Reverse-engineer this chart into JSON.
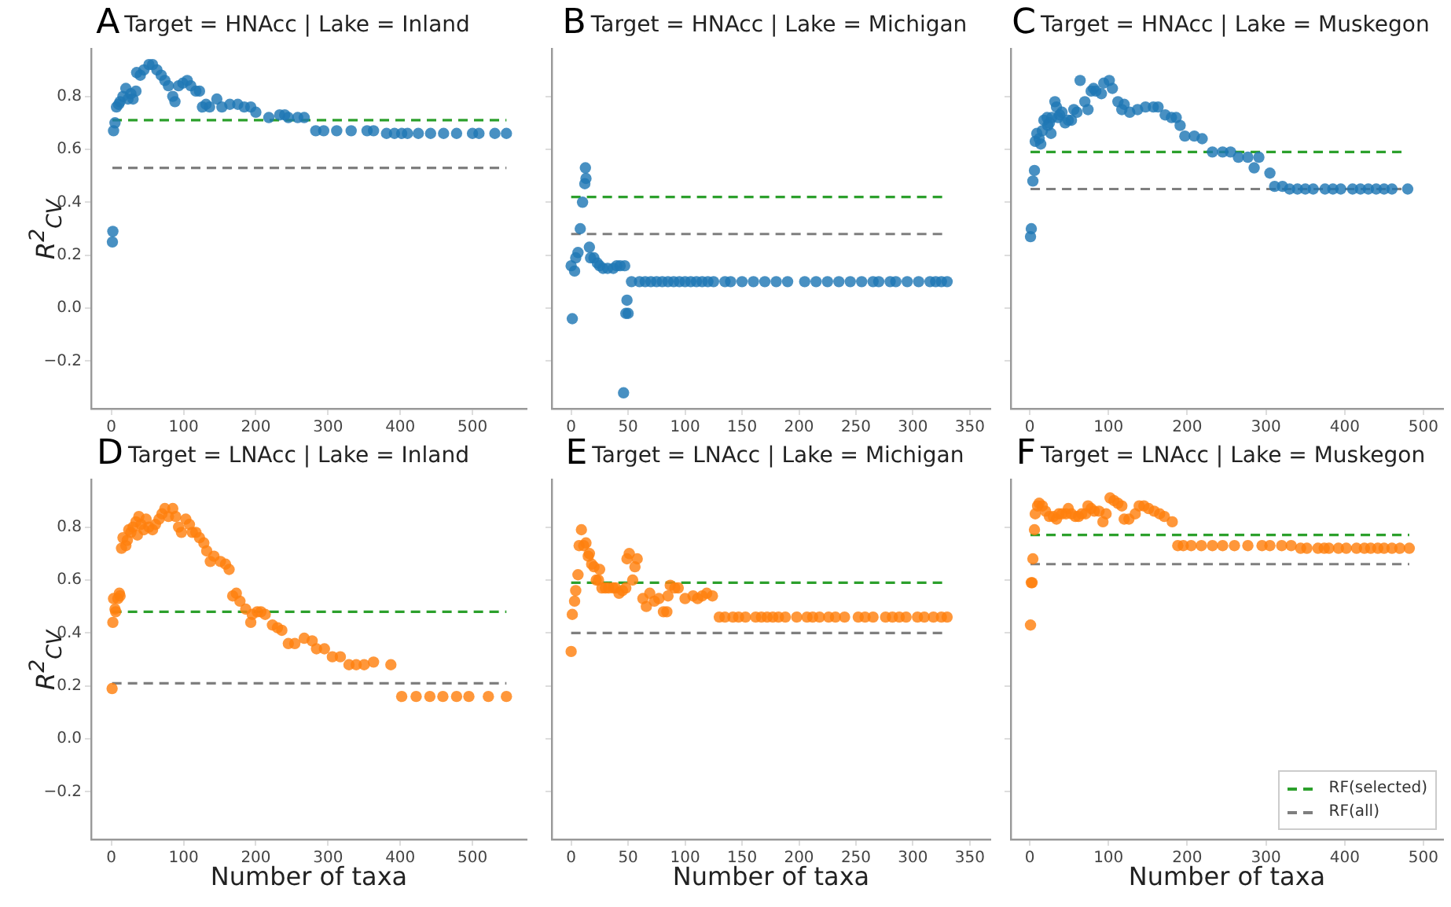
{
  "chart_data": [
    {
      "type": "scatter",
      "title": "Target = HNAcc | Lake = Inland",
      "annotations": [
        "A"
      ],
      "ylabel": "R$^{2}$$_{CV}$",
      "color": "#1f77b4",
      "marker": "circle",
      "grid": false,
      "legend": false,
      "x": [
        1.4,
        2,
        3,
        5,
        7,
        10,
        12,
        16,
        20,
        23,
        27,
        30,
        34,
        35,
        40,
        45,
        52,
        57,
        63,
        69,
        74,
        79,
        85,
        88,
        93,
        99,
        105,
        110,
        117,
        122,
        126,
        131,
        136,
        146,
        153,
        164,
        175,
        184,
        193,
        200,
        218,
        233,
        240,
        245,
        258,
        267,
        283,
        294,
        312,
        332,
        354,
        363,
        381,
        392,
        402,
        410,
        425,
        442,
        460,
        478,
        500,
        509,
        531,
        547
      ],
      "values": [
        0.25,
        0.29,
        0.67,
        0.7,
        0.76,
        0.77,
        0.78,
        0.8,
        0.83,
        0.79,
        0.81,
        0.79,
        0.82,
        0.89,
        0.88,
        0.9,
        0.92,
        0.92,
        0.9,
        0.88,
        0.86,
        0.84,
        0.8,
        0.78,
        0.84,
        0.85,
        0.86,
        0.84,
        0.82,
        0.82,
        0.76,
        0.77,
        0.76,
        0.79,
        0.76,
        0.77,
        0.77,
        0.76,
        0.76,
        0.74,
        0.72,
        0.73,
        0.73,
        0.72,
        0.72,
        0.72,
        0.67,
        0.67,
        0.67,
        0.67,
        0.67,
        0.67,
        0.66,
        0.66,
        0.66,
        0.66,
        0.66,
        0.66,
        0.66,
        0.66,
        0.66,
        0.66,
        0.66,
        0.66
      ],
      "xlim": [
        -28,
        575
      ],
      "xticks": [
        0,
        100,
        200,
        300,
        400,
        500
      ],
      "ylim": [
        -0.38,
        0.98
      ],
      "yticks": [
        {
          "value": -0.2,
          "label": "−0.2"
        },
        {
          "value": 0,
          "label": "0.0"
        },
        {
          "value": 0.2,
          "label": "0.2"
        },
        {
          "value": 0.4,
          "label": "0.4"
        },
        {
          "value": 0.6,
          "label": "0.6"
        },
        {
          "value": 0.8,
          "label": "0.8"
        }
      ],
      "ref_lines": [
        {
          "axis": "y",
          "value": 0.71,
          "color": "#2ca02c",
          "line_style": "dashed"
        },
        {
          "axis": "y",
          "value": 0.53,
          "color": "#7f7f7f",
          "line_style": "dashed"
        }
      ]
    },
    {
      "type": "scatter",
      "title": "Target = HNAcc | Lake = Michigan",
      "annotations": [
        "B"
      ],
      "color": "#1f77b4",
      "marker": "circle",
      "grid": false,
      "legend": false,
      "tick_labels": "x",
      "x": [
        0,
        1,
        3,
        4,
        6,
        8,
        10,
        12,
        13,
        12.5,
        16,
        17,
        20,
        23,
        25,
        28,
        32,
        37,
        40,
        43,
        47,
        48,
        50,
        49,
        46,
        53,
        60,
        65,
        70,
        75,
        80,
        85,
        90,
        95,
        100,
        105,
        110,
        115,
        120,
        125,
        135,
        140,
        150,
        160,
        170,
        180,
        190,
        205,
        215,
        225,
        235,
        245,
        255,
        265,
        270,
        280,
        285,
        295,
        305,
        315,
        320,
        325,
        330
      ],
      "values": [
        0.16,
        -0.04,
        0.14,
        0.19,
        0.21,
        0.3,
        0.4,
        0.47,
        0.49,
        0.53,
        0.23,
        0.19,
        0.19,
        0.17,
        0.16,
        0.15,
        0.15,
        0.15,
        0.16,
        0.16,
        0.16,
        -0.02,
        -0.02,
        0.03,
        -0.32,
        0.1,
        0.1,
        0.1,
        0.1,
        0.1,
        0.1,
        0.1,
        0.1,
        0.1,
        0.1,
        0.1,
        0.1,
        0.1,
        0.1,
        0.1,
        0.1,
        0.1,
        0.1,
        0.1,
        0.1,
        0.1,
        0.1,
        0.1,
        0.1,
        0.1,
        0.1,
        0.1,
        0.1,
        0.1,
        0.1,
        0.1,
        0.1,
        0.1,
        0.1,
        0.1,
        0.1,
        0.1,
        0.1
      ],
      "xlim": [
        -17,
        368
      ],
      "xticks": [
        0,
        50,
        100,
        150,
        200,
        250,
        300,
        350
      ],
      "ylim": [
        -0.38,
        0.98
      ],
      "yticks": [
        {
          "value": -0.2,
          "label": null
        },
        {
          "value": 0,
          "label": null
        },
        {
          "value": 0.2,
          "label": null
        },
        {
          "value": 0.4,
          "label": null
        },
        {
          "value": 0.6,
          "label": null
        },
        {
          "value": 0.8,
          "label": null
        }
      ],
      "ref_lines": [
        {
          "axis": "y",
          "value": 0.42,
          "color": "#2ca02c",
          "line_style": "dashed"
        },
        {
          "axis": "y",
          "value": 0.28,
          "color": "#7f7f7f",
          "line_style": "dashed"
        }
      ]
    },
    {
      "type": "scatter",
      "title": "Target = HNAcc | Lake = Muskegon",
      "annotations": [
        "C"
      ],
      "color": "#1f77b4",
      "marker": "circle",
      "grid": false,
      "legend": false,
      "tick_labels": "x",
      "x": [
        1,
        2,
        4,
        6,
        7,
        9,
        12,
        14,
        16,
        18,
        22,
        23,
        25,
        27,
        28,
        32,
        34,
        36,
        38,
        41,
        45,
        49,
        53,
        56,
        60,
        64,
        70,
        74,
        78,
        81,
        84,
        91,
        94,
        101,
        105,
        112,
        117,
        120,
        127,
        137,
        147,
        157,
        163,
        172,
        180,
        186,
        191,
        197,
        209,
        219,
        232,
        245,
        255,
        265,
        277,
        285,
        291,
        305,
        311,
        321,
        330,
        340,
        350,
        360,
        375,
        385,
        395,
        410,
        420,
        430,
        440,
        450,
        460,
        480
      ],
      "values": [
        0.27,
        0.3,
        0.48,
        0.52,
        0.63,
        0.66,
        0.64,
        0.62,
        0.67,
        0.71,
        0.72,
        0.69,
        0.7,
        0.66,
        0.72,
        0.78,
        0.76,
        0.72,
        0.73,
        0.74,
        0.7,
        0.71,
        0.71,
        0.75,
        0.74,
        0.86,
        0.78,
        0.75,
        0.82,
        0.83,
        0.82,
        0.81,
        0.85,
        0.86,
        0.83,
        0.78,
        0.75,
        0.77,
        0.74,
        0.75,
        0.76,
        0.76,
        0.76,
        0.73,
        0.72,
        0.72,
        0.69,
        0.65,
        0.65,
        0.64,
        0.59,
        0.59,
        0.59,
        0.57,
        0.57,
        0.53,
        0.57,
        0.51,
        0.46,
        0.46,
        0.45,
        0.45,
        0.45,
        0.45,
        0.45,
        0.45,
        0.45,
        0.45,
        0.45,
        0.45,
        0.45,
        0.45,
        0.45,
        0.45
      ],
      "xlim": [
        -24,
        525
      ],
      "xticks": [
        0,
        100,
        200,
        300,
        400,
        500
      ],
      "ylim": [
        -0.38,
        0.98
      ],
      "yticks": [
        {
          "value": -0.2,
          "label": null
        },
        {
          "value": 0,
          "label": null
        },
        {
          "value": 0.2,
          "label": null
        },
        {
          "value": 0.4,
          "label": null
        },
        {
          "value": 0.6,
          "label": null
        },
        {
          "value": 0.8,
          "label": null
        }
      ],
      "ref_lines": [
        {
          "axis": "y",
          "value": 0.59,
          "color": "#2ca02c",
          "line_style": "dashed"
        },
        {
          "axis": "y",
          "value": 0.45,
          "color": "#7f7f7f",
          "line_style": "dashed"
        }
      ]
    },
    {
      "type": "scatter",
      "title": "Target = LNAcc | Lake = Inland",
      "annotations": [
        "D"
      ],
      "xlabel": "Number of taxa",
      "ylabel": "R$^{2}$$_{CV}$",
      "color": "#ff7f0e",
      "marker": "circle",
      "grid": false,
      "legend": false,
      "x": [
        1,
        2,
        3,
        5,
        6,
        9,
        11,
        12,
        14,
        16,
        20,
        22,
        24,
        27,
        30,
        34,
        36,
        38,
        41,
        45,
        48,
        52,
        57,
        61,
        66,
        70,
        74,
        79,
        85,
        89,
        93,
        97,
        103,
        108,
        112,
        117,
        122,
        128,
        132,
        137,
        142,
        151,
        158,
        163,
        168,
        173,
        178,
        186,
        193,
        195,
        202,
        207,
        213,
        223,
        230,
        236,
        245,
        254,
        267,
        278,
        284,
        295,
        306,
        317,
        329,
        339,
        350,
        363,
        387,
        402,
        422,
        441,
        459,
        478,
        495,
        522,
        547
      ],
      "values": [
        0.19,
        0.44,
        0.53,
        0.49,
        0.48,
        0.53,
        0.55,
        0.54,
        0.72,
        0.76,
        0.73,
        0.75,
        0.79,
        0.78,
        0.8,
        0.82,
        0.77,
        0.84,
        0.81,
        0.79,
        0.83,
        0.8,
        0.79,
        0.81,
        0.83,
        0.85,
        0.87,
        0.84,
        0.87,
        0.84,
        0.8,
        0.78,
        0.83,
        0.81,
        0.78,
        0.78,
        0.76,
        0.74,
        0.71,
        0.67,
        0.69,
        0.67,
        0.66,
        0.64,
        0.54,
        0.55,
        0.52,
        0.49,
        0.44,
        0.47,
        0.48,
        0.48,
        0.47,
        0.43,
        0.42,
        0.41,
        0.36,
        0.36,
        0.38,
        0.37,
        0.34,
        0.34,
        0.31,
        0.31,
        0.28,
        0.28,
        0.28,
        0.29,
        0.28,
        0.16,
        0.16,
        0.16,
        0.16,
        0.16,
        0.16,
        0.16,
        0.16
      ],
      "xlim": [
        -28,
        575
      ],
      "xticks": [
        0,
        100,
        200,
        300,
        400,
        500
      ],
      "ylim": [
        -0.38,
        0.98
      ],
      "yticks": [
        {
          "value": -0.2,
          "label": "−0.2"
        },
        {
          "value": 0,
          "label": "0.0"
        },
        {
          "value": 0.2,
          "label": "0.2"
        },
        {
          "value": 0.4,
          "label": "0.4"
        },
        {
          "value": 0.6,
          "label": "0.6"
        },
        {
          "value": 0.8,
          "label": "0.8"
        }
      ],
      "ref_lines": [
        {
          "axis": "y",
          "value": 0.48,
          "color": "#2ca02c",
          "line_style": "dashed"
        },
        {
          "axis": "y",
          "value": 0.21,
          "color": "#7f7f7f",
          "line_style": "dashed"
        }
      ]
    },
    {
      "type": "scatter",
      "title": "Target = LNAcc | Lake = Michigan",
      "annotations": [
        "E"
      ],
      "xlabel": "Number of taxa",
      "color": "#ff7f0e",
      "marker": "circle",
      "grid": false,
      "legend": false,
      "tick_labels": "x",
      "x": [
        0,
        1,
        3,
        4,
        6,
        7,
        9,
        11,
        13,
        15,
        16,
        18,
        20,
        22,
        24,
        25,
        27,
        30,
        33,
        37,
        39,
        42,
        45,
        48,
        49,
        51,
        54,
        56,
        58,
        63,
        66,
        69,
        73,
        77,
        81,
        84,
        85,
        87,
        91,
        94,
        100,
        107,
        111,
        115,
        119,
        124,
        130,
        135,
        142,
        147,
        153,
        162,
        167,
        172,
        177,
        182,
        188,
        198,
        207,
        212,
        218,
        226,
        232,
        240,
        252,
        258,
        265,
        276,
        282,
        288,
        294,
        304,
        310,
        318,
        325,
        330
      ],
      "values": [
        0.33,
        0.47,
        0.52,
        0.56,
        0.62,
        0.73,
        0.79,
        0.73,
        0.74,
        0.69,
        0.7,
        0.66,
        0.65,
        0.6,
        0.6,
        0.64,
        0.57,
        0.57,
        0.57,
        0.57,
        0.57,
        0.55,
        0.56,
        0.57,
        0.68,
        0.7,
        0.6,
        0.65,
        0.68,
        0.53,
        0.5,
        0.55,
        0.52,
        0.53,
        0.48,
        0.48,
        0.54,
        0.58,
        0.57,
        0.57,
        0.53,
        0.54,
        0.53,
        0.54,
        0.55,
        0.54,
        0.46,
        0.46,
        0.46,
        0.46,
        0.46,
        0.46,
        0.46,
        0.46,
        0.46,
        0.46,
        0.46,
        0.46,
        0.46,
        0.46,
        0.46,
        0.46,
        0.46,
        0.46,
        0.46,
        0.46,
        0.46,
        0.46,
        0.46,
        0.46,
        0.46,
        0.46,
        0.46,
        0.46,
        0.46,
        0.46
      ],
      "xlim": [
        -17,
        368
      ],
      "xticks": [
        0,
        50,
        100,
        150,
        200,
        250,
        300,
        350
      ],
      "ylim": [
        -0.38,
        0.98
      ],
      "yticks": [
        {
          "value": -0.2,
          "label": null
        },
        {
          "value": 0,
          "label": null
        },
        {
          "value": 0.2,
          "label": null
        },
        {
          "value": 0.4,
          "label": null
        },
        {
          "value": 0.6,
          "label": null
        },
        {
          "value": 0.8,
          "label": null
        }
      ],
      "ref_lines": [
        {
          "axis": "y",
          "value": 0.59,
          "color": "#2ca02c",
          "line_style": "dashed"
        },
        {
          "axis": "y",
          "value": 0.4,
          "color": "#7f7f7f",
          "line_style": "dashed"
        }
      ]
    },
    {
      "type": "scatter",
      "title": "Target = LNAcc | Lake = Muskegon",
      "annotations": [
        "F"
      ],
      "xlabel": "Number of taxa",
      "color": "#ff7f0e",
      "marker": "circle",
      "grid": false,
      "legend": "bottom right",
      "tick_labels": "x",
      "x": [
        1,
        2,
        3,
        4,
        6,
        7,
        10,
        12,
        16,
        20,
        25,
        30,
        34,
        37,
        41,
        46,
        49,
        53,
        58,
        62,
        66,
        71,
        74,
        78,
        82,
        88,
        93,
        97,
        102,
        107,
        112,
        117,
        120,
        126,
        134,
        139,
        145,
        151,
        158,
        165,
        171,
        181,
        188,
        195,
        205,
        218,
        232,
        245,
        260,
        277,
        295,
        305,
        320,
        332,
        344,
        352,
        366,
        374,
        380,
        392,
        402,
        415,
        425,
        433,
        442,
        450,
        460,
        470,
        482
      ],
      "values": [
        0.43,
        0.59,
        0.59,
        0.68,
        0.79,
        0.85,
        0.88,
        0.89,
        0.88,
        0.86,
        0.84,
        0.84,
        0.83,
        0.85,
        0.85,
        0.85,
        0.87,
        0.85,
        0.84,
        0.84,
        0.85,
        0.85,
        0.88,
        0.87,
        0.86,
        0.86,
        0.82,
        0.85,
        0.91,
        0.9,
        0.89,
        0.88,
        0.83,
        0.83,
        0.85,
        0.88,
        0.88,
        0.87,
        0.86,
        0.85,
        0.84,
        0.82,
        0.73,
        0.73,
        0.73,
        0.73,
        0.73,
        0.73,
        0.73,
        0.73,
        0.73,
        0.73,
        0.73,
        0.73,
        0.72,
        0.72,
        0.72,
        0.72,
        0.72,
        0.72,
        0.72,
        0.72,
        0.72,
        0.72,
        0.72,
        0.72,
        0.72,
        0.72,
        0.72
      ],
      "xlim": [
        -24,
        525
      ],
      "xticks": [
        0,
        100,
        200,
        300,
        400,
        500
      ],
      "ylim": [
        -0.38,
        0.98
      ],
      "yticks": [
        {
          "value": -0.2,
          "label": null
        },
        {
          "value": 0,
          "label": null
        },
        {
          "value": 0.2,
          "label": null
        },
        {
          "value": 0.4,
          "label": null
        },
        {
          "value": 0.6,
          "label": null
        },
        {
          "value": 0.8,
          "label": null
        }
      ],
      "ref_lines": [
        {
          "axis": "y",
          "value": 0.77,
          "color": "#2ca02c",
          "line_style": "dashed",
          "label": "RF(selected)"
        },
        {
          "axis": "y",
          "value": 0.66,
          "color": "#7f7f7f",
          "line_style": "dashed",
          "label": "RF(all)"
        }
      ]
    }
  ]
}
